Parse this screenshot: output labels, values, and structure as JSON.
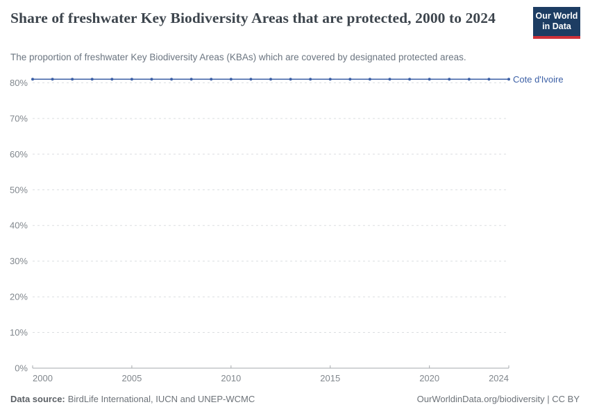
{
  "header": {
    "title": "Share of freshwater Key Biodiversity Areas that are protected, 2000 to 2024",
    "subtitle": "The proportion of freshwater Key Biodiversity Areas (KBAs) which are covered by designated protected areas.",
    "logo": {
      "line1": "Our World",
      "line2": "in Data",
      "bg_color": "#1d3d63",
      "stripe_color": "#cf3139"
    }
  },
  "chart_data": {
    "type": "line",
    "title": "Share of freshwater Key Biodiversity Areas that are protected, 2000 to 2024",
    "xlabel": "",
    "ylabel": "",
    "x": [
      2000,
      2001,
      2002,
      2003,
      2004,
      2005,
      2006,
      2007,
      2008,
      2009,
      2010,
      2011,
      2012,
      2013,
      2014,
      2015,
      2016,
      2017,
      2018,
      2019,
      2020,
      2021,
      2022,
      2023,
      2024
    ],
    "x_ticks": [
      2000,
      2005,
      2010,
      2015,
      2020,
      2024
    ],
    "y_ticks": [
      0,
      10,
      20,
      30,
      40,
      50,
      60,
      70,
      80
    ],
    "y_tick_suffix": "%",
    "ylim": [
      0,
      84
    ],
    "grid": "horizontal-dashed",
    "legend_position": "right-end-of-line",
    "series": [
      {
        "name": "Cote d'Ivoire",
        "color": "#3b5fa5",
        "values": [
          81,
          81,
          81,
          81,
          81,
          81,
          81,
          81,
          81,
          81,
          81,
          81,
          81,
          81,
          81,
          81,
          81,
          81,
          81,
          81,
          81,
          81,
          81,
          81,
          81
        ]
      }
    ],
    "colors": {
      "grid": "#dadde0",
      "axis": "#a6a9ac",
      "tick_label": "#81878d"
    }
  },
  "footer": {
    "source_label": "Data source:",
    "source_text": "BirdLife International, IUCN and UNEP-WCMC",
    "attribution": "OurWorldinData.org/biodiversity | CC BY"
  }
}
